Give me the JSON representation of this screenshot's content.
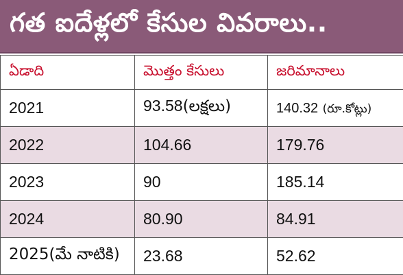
{
  "banner": {
    "title": "గత ఐదేళ్లలో కేసుల వివరాలు.."
  },
  "table": {
    "headers": [
      "ఏడాది",
      "మొత్తం కేసులు",
      "జరిమానాలు"
    ],
    "rows": [
      {
        "year": "2021",
        "cases": "93.58",
        "cases_unit": "(లక్షలు)",
        "fines": "140.32",
        "fines_unit": "(రూ.కోట్లు)"
      },
      {
        "year": "2022",
        "cases": "104.66",
        "cases_unit": "",
        "fines": "179.76",
        "fines_unit": ""
      },
      {
        "year": "2023",
        "cases": "90",
        "cases_unit": "",
        "fines": "185.14",
        "fines_unit": ""
      },
      {
        "year": "2024",
        "cases": "80.90",
        "cases_unit": "",
        "fines": "84.91",
        "fines_unit": ""
      },
      {
        "year": "2025(మే నాటికి)",
        "cases": "23.68",
        "cases_unit": "",
        "fines": "52.62",
        "fines_unit": ""
      }
    ]
  },
  "colors": {
    "banner_bg": "#8a5a78",
    "header_text": "#c8102e",
    "shaded_row": "#eadbe3"
  }
}
